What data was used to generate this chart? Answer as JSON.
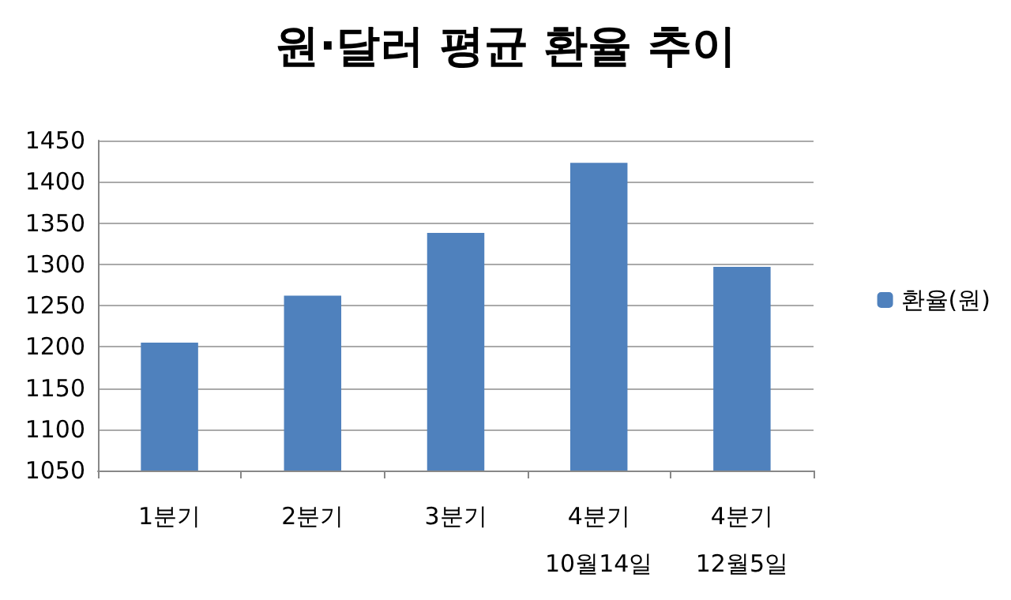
{
  "chart_data": {
    "type": "bar",
    "title": "원·달러 평균 환율 추이",
    "categories": [
      "1분기",
      "2분기",
      "3분기",
      "4분기\n10월14일",
      "4분기\n12월5일"
    ],
    "series": [
      {
        "name": "환율(원)",
        "color": "#4f81bd",
        "values": [
          1205,
          1262,
          1338,
          1423,
          1297
        ]
      }
    ],
    "ylim": [
      1050,
      1450
    ],
    "yticks": [
      1050,
      1100,
      1150,
      1200,
      1250,
      1300,
      1350,
      1400,
      1450
    ],
    "grid": "y",
    "legend": "right"
  }
}
